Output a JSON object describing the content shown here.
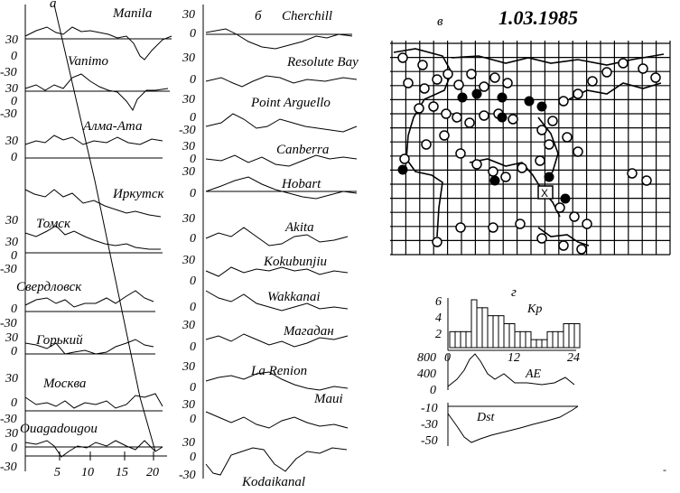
{
  "panel_a": {
    "label": "а",
    "stations": [
      "Manila",
      "Vanimo",
      "Алма-Ата",
      "Иркутск",
      "Томск",
      "Свердловск",
      "Горький",
      "Москва",
      "Ouagadougou"
    ],
    "y_ticks": [
      "30",
      "0",
      "-30"
    ],
    "x_ticks": [
      "5",
      "10",
      "15",
      "20"
    ]
  },
  "panel_b": {
    "label": "б",
    "stations": [
      "Cherchill",
      "Resolute Bay",
      "Point Arguello",
      "Canberra",
      "Hobart",
      "Akita",
      "Kokubunjiu",
      "Wakkanai",
      "Магадан",
      "La Renion",
      "Maui",
      "Kodaikanal"
    ],
    "y_ticks": [
      "30",
      "0",
      "-30"
    ]
  },
  "panel_v": {
    "label": "в",
    "date": "1.03.1985",
    "marker_label": "X"
  },
  "panel_g": {
    "label": "г",
    "kp_label": "Kp",
    "kp_ticks": [
      "6",
      "4",
      "2"
    ],
    "ae_label": "AE",
    "ae_ticks": [
      "800",
      "400",
      "0"
    ],
    "dst_label": "Dst",
    "dst_ticks": [
      "-10",
      "-30",
      "-50"
    ],
    "x_ticks": [
      "0",
      "12",
      "24"
    ],
    "chart_data": {
      "type": "bar",
      "title": "Kp",
      "x": [
        0,
        1,
        2,
        3,
        4,
        5,
        6,
        7,
        8,
        9,
        10,
        11,
        12,
        13,
        14,
        15,
        16,
        17,
        18,
        19,
        20,
        21,
        22,
        23
      ],
      "values": [
        2,
        2,
        2,
        2,
        6,
        5,
        5,
        4,
        4,
        4,
        3,
        3,
        2,
        2,
        2,
        1,
        1,
        1,
        2,
        2,
        2,
        3,
        3,
        3
      ],
      "ylim": [
        0,
        6
      ]
    }
  },
  "stray_mark": "-"
}
